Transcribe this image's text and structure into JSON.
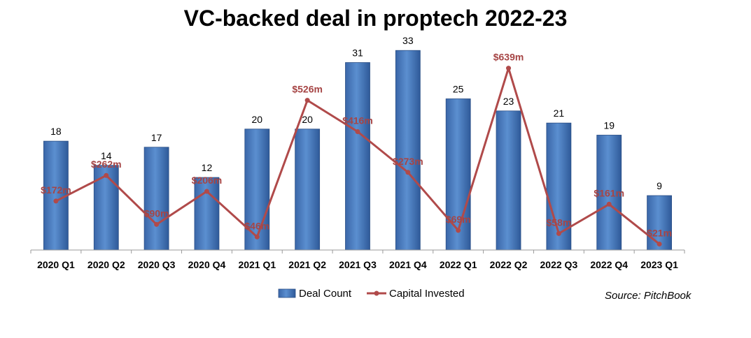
{
  "chart_data": {
    "type": "bar",
    "title": "VC-backed deal in proptech 2022-23",
    "categories": [
      "2020 Q1",
      "2020 Q2",
      "2020 Q3",
      "2020 Q4",
      "2021 Q1",
      "2021 Q2",
      "2021 Q3",
      "2021 Q4",
      "2022 Q1",
      "2022 Q2",
      "2022 Q3",
      "2022 Q4",
      "2023 Q1"
    ],
    "series": [
      {
        "name": "Deal Count",
        "type": "bar",
        "color": "#4f81bd",
        "values": [
          18,
          14,
          17,
          12,
          20,
          20,
          31,
          33,
          25,
          23,
          21,
          19,
          9
        ],
        "labels": [
          "18",
          "14",
          "17",
          "12",
          "20",
          "20",
          "31",
          "33",
          "25",
          "23",
          "21",
          "19",
          "9"
        ]
      },
      {
        "name": "Capital Invested",
        "type": "line",
        "color": "#b04a4a",
        "values": [
          172,
          262,
          90,
          206,
          46,
          526,
          416,
          273,
          69,
          639,
          58,
          161,
          21
        ],
        "labels": [
          "$172m",
          "$262m",
          "$90m",
          "$206m",
          "$46m",
          "$526m",
          "$416m",
          "$273m",
          "$69m",
          "$639m",
          "$58m",
          "$161m",
          "$21m"
        ]
      }
    ],
    "legend": "bottom",
    "grid": false,
    "source": "Source: PitchBook"
  }
}
